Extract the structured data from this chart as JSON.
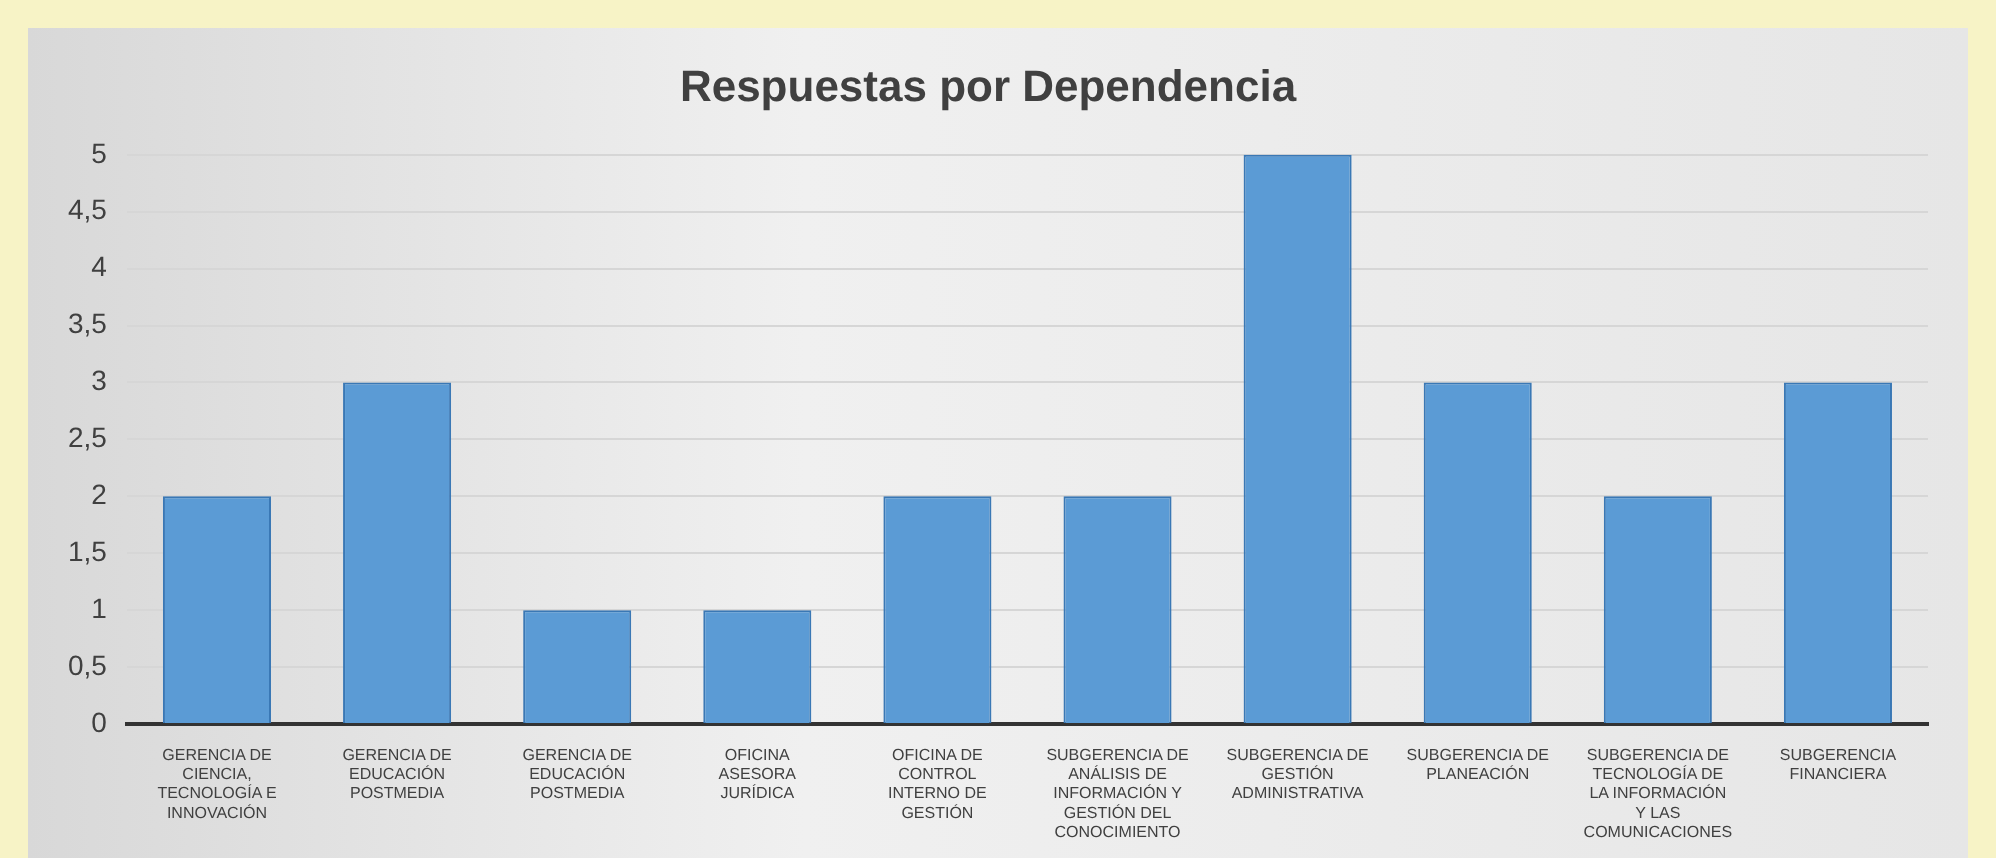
{
  "chart_data": {
    "type": "bar",
    "title": "Respuestas por Dependencia",
    "categories": [
      "GERENCIA DE CIENCIA, TECNOLOGÍA E INNOVACIÓN",
      "GERENCIA DE EDUCACIÓN POSTMEDIA",
      "GERENCIA DE EDUCACIÓN POSTMEDIA",
      "OFICINA ASESORA JURÍDICA",
      "OFICINA DE CONTROL INTERNO DE GESTIÓN",
      "SUBGERENCIA DE ANÁLISIS DE INFORMACIÓN Y GESTIÓN DEL CONOCIMIENTO",
      "SUBGERENCIA DE GESTIÓN ADMINISTRATIVA",
      "SUBGERENCIA DE PLANEACIÓN",
      "SUBGERENCIA DE TECNOLOGÍA DE LA INFORMACIÓN Y LAS COMUNICACIONES",
      "SUBGERENCIA FINANCIERA"
    ],
    "values": [
      2,
      3,
      1,
      1,
      2,
      2,
      5,
      3,
      2,
      3
    ],
    "color": "#5b9bd5",
    "ylim": [
      0,
      5
    ],
    "yticks": [
      0,
      {
        "value": 0.5,
        "label": "0,5"
      },
      1,
      {
        "value": 1.5,
        "label": "1,5"
      },
      2,
      {
        "value": 2.5,
        "label": "2,5"
      },
      3,
      {
        "value": 3.5,
        "label": "3,5"
      },
      4,
      {
        "value": 4.5,
        "label": "4,5"
      },
      5
    ],
    "grid": "y",
    "legend": false
  }
}
